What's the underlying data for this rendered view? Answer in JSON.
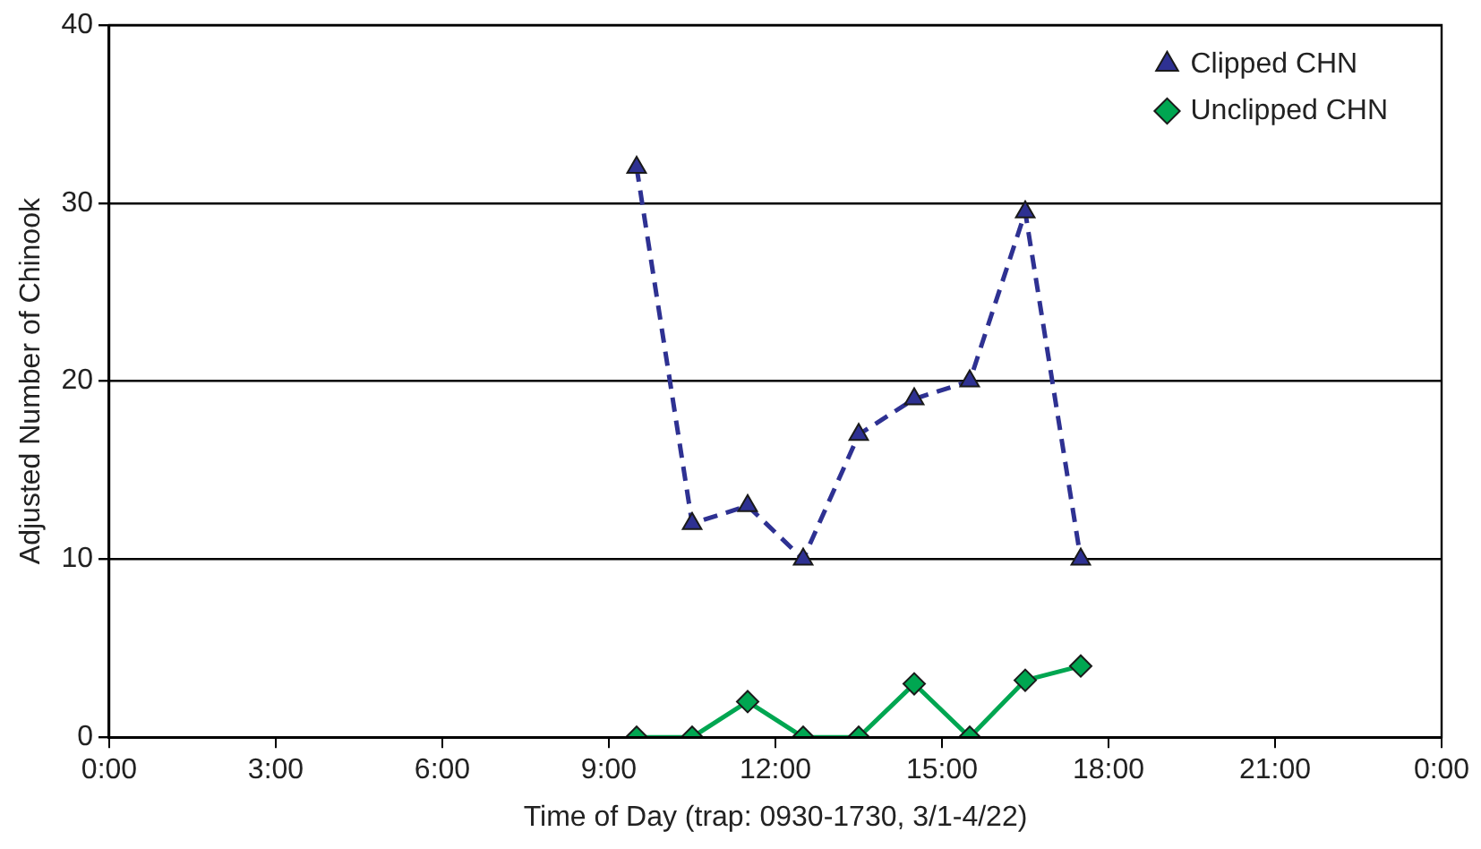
{
  "chart_data": {
    "type": "line",
    "xlabel": "Time of Day (trap: 0930-1730, 3/1-4/22)",
    "ylabel": "Adjusted Number of Chinook",
    "x": [
      9.5,
      10.5,
      11.5,
      12.5,
      13.5,
      14.5,
      15.5,
      16.5,
      17.5
    ],
    "series": [
      {
        "name": "Clipped CHN",
        "color": "#2e3192",
        "marker": "triangle",
        "line_style": "dashed",
        "values": [
          32,
          12,
          13,
          10,
          17,
          19,
          20,
          29.5,
          10
        ]
      },
      {
        "name": "Unclipped CHN",
        "color": "#00a651",
        "marker": "diamond",
        "line_style": "solid",
        "values": [
          0,
          0,
          2,
          0,
          0,
          3,
          0,
          3.2,
          4
        ]
      }
    ],
    "xlim": [
      0,
      24
    ],
    "xticks": [
      {
        "value": 0,
        "label": "0:00"
      },
      {
        "value": 3,
        "label": "3:00"
      },
      {
        "value": 6,
        "label": "6:00"
      },
      {
        "value": 9,
        "label": "9:00"
      },
      {
        "value": 12,
        "label": "12:00"
      },
      {
        "value": 15,
        "label": "15:00"
      },
      {
        "value": 18,
        "label": "18:00"
      },
      {
        "value": 21,
        "label": "21:00"
      },
      {
        "value": 24,
        "label": "0:00"
      }
    ],
    "ylim": [
      0,
      40
    ],
    "yticks": [
      0,
      10,
      20,
      30,
      40
    ],
    "grid": "y",
    "legend": "top right"
  }
}
